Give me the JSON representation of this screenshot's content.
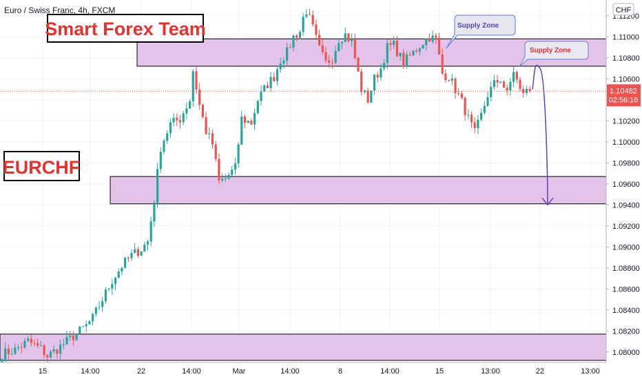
{
  "symbol": "Euro / Swiss Franc, 4h, FXCM",
  "brand_title": "Smart Forex Team",
  "pair_label": "EURCHF",
  "currency": "CHF",
  "price_badge": {
    "price": "1.10482",
    "countdown": "02:56:16",
    "color": "#ef5350"
  },
  "colors": {
    "up": "#26a69a",
    "down": "#ef5350",
    "zone": "#e3c3ea",
    "projection": "#5b3fbf",
    "title": "#e8312f"
  },
  "annotations": [
    {
      "label": "Supply Zone",
      "color": "#5b3fbf",
      "bg": "#e6e6ef"
    },
    {
      "label": "Supply Zone",
      "color": "#e8312f",
      "bg": "#ece8f1"
    }
  ],
  "chart_data": {
    "type": "candlestick",
    "title": "Euro / Swiss Franc, 4h, FXCM",
    "y_unit": "CHF",
    "ylim": [
      1.079,
      1.1135
    ],
    "y_ticks": [
      "1.11200",
      "1.11000",
      "1.10800",
      "1.10600",
      "1.10400",
      "1.10200",
      "1.10000",
      "1.09800",
      "1.09600",
      "1.09400",
      "1.09200",
      "1.09000",
      "1.08800",
      "1.08600",
      "1.08400",
      "1.08200",
      "1.08000"
    ],
    "x_ticks": [
      "15",
      "14:00",
      "22",
      "14:00",
      "Mar",
      "14:00",
      "8",
      "14:00",
      "15",
      "13:00",
      "22",
      "13:00"
    ],
    "last_price": 1.10482,
    "zones": [
      {
        "low": 1.1072,
        "high": 1.1098,
        "x_start": 0.22
      },
      {
        "low": 1.0941,
        "high": 1.0967,
        "x_start": 0.18
      },
      {
        "low": 1.0792,
        "high": 1.0817,
        "x_start": 0.0
      }
    ],
    "projection": {
      "from": 1.105,
      "peak": 1.107,
      "target": 1.094
    },
    "path_closes": [
      [
        0,
        1.0798
      ],
      [
        4,
        1.0802
      ],
      [
        8,
        1.081
      ],
      [
        12,
        1.0803
      ],
      [
        14,
        1.0796
      ],
      [
        18,
        1.0805
      ],
      [
        22,
        1.0815
      ],
      [
        26,
        1.0825
      ],
      [
        28,
        1.0832
      ],
      [
        31,
        1.085
      ],
      [
        34,
        1.0868
      ],
      [
        37,
        1.0882
      ],
      [
        40,
        1.0892
      ],
      [
        43,
        1.0898
      ],
      [
        45,
        1.0905
      ],
      [
        47,
        1.0945
      ],
      [
        49,
        1.0995
      ],
      [
        52,
        1.1017
      ],
      [
        55,
        1.1022
      ],
      [
        58,
        1.104
      ],
      [
        59,
        1.1068
      ],
      [
        61,
        1.1035
      ],
      [
        63,
        1.101
      ],
      [
        65,
        1.0998
      ],
      [
        67,
        1.0962
      ],
      [
        69,
        1.0965
      ],
      [
        72,
        1.0975
      ],
      [
        74,
        1.1022
      ],
      [
        77,
        1.1018
      ],
      [
        79,
        1.104
      ],
      [
        82,
        1.1055
      ],
      [
        84,
        1.1062
      ],
      [
        86,
        1.1078
      ],
      [
        88,
        1.1085
      ],
      [
        90,
        1.11
      ],
      [
        92,
        1.1105
      ],
      [
        93,
        1.1118
      ],
      [
        94,
        1.1125
      ],
      [
        96,
        1.1108
      ],
      [
        98,
        1.1088
      ],
      [
        100,
        1.1075
      ],
      [
        102,
        1.108
      ],
      [
        104,
        1.1098
      ],
      [
        106,
        1.1102
      ],
      [
        108,
        1.1095
      ],
      [
        111,
        1.105
      ],
      [
        113,
        1.104
      ],
      [
        115,
        1.106
      ],
      [
        117,
        1.107
      ],
      [
        119,
        1.109
      ],
      [
        121,
        1.1092
      ],
      [
        124,
        1.1075
      ],
      [
        127,
        1.1085
      ],
      [
        130,
        1.1095
      ],
      [
        132,
        1.11
      ],
      [
        134,
        1.1097
      ],
      [
        136,
        1.1065
      ],
      [
        138,
        1.1062
      ],
      [
        140,
        1.105
      ],
      [
        142,
        1.1038
      ],
      [
        144,
        1.1022
      ],
      [
        146,
        1.1008
      ],
      [
        148,
        1.1025
      ],
      [
        150,
        1.1045
      ],
      [
        152,
        1.1055
      ],
      [
        154,
        1.106
      ],
      [
        156,
        1.1045
      ],
      [
        158,
        1.1068
      ],
      [
        160,
        1.1048
      ],
      [
        163,
        1.10482
      ]
    ]
  }
}
